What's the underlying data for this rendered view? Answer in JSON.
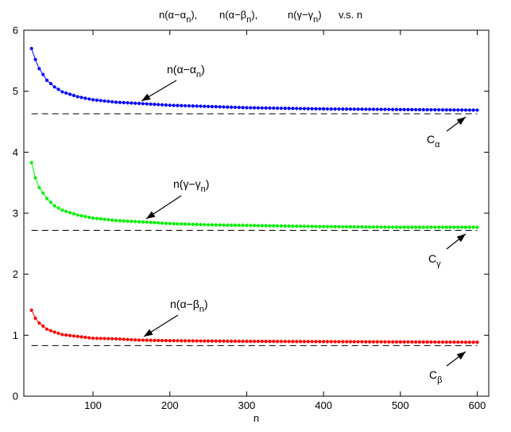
{
  "chart_data": {
    "type": "line",
    "title": {
      "parts": [
        {
          "base": "n(α−α",
          "sub": "n",
          "tail": "),"
        },
        {
          "base": "n(α−β",
          "sub": "n",
          "tail": "),"
        },
        {
          "base": "n(γ−γ",
          "sub": "n",
          "tail": ")"
        }
      ],
      "suffix": "v.s.   n"
    },
    "xlabel": "n",
    "ylabel": "",
    "xlim": [
      10,
      615
    ],
    "ylim": [
      0,
      6
    ],
    "x_ticks": [
      100,
      200,
      300,
      400,
      500,
      600
    ],
    "y_ticks": [
      0,
      1,
      2,
      3,
      4,
      5,
      6
    ],
    "grid": false,
    "x_range": [
      20,
      600
    ],
    "x_step": 5,
    "series": [
      {
        "key": "alpha",
        "color": "#0000ff",
        "points": [
          [
            20,
            5.7
          ],
          [
            25,
            5.52
          ],
          [
            30,
            5.37
          ],
          [
            40,
            5.18
          ],
          [
            50,
            5.07
          ],
          [
            60,
            4.99
          ],
          [
            80,
            4.91
          ],
          [
            100,
            4.86
          ],
          [
            130,
            4.82
          ],
          [
            160,
            4.8
          ],
          [
            200,
            4.77
          ],
          [
            250,
            4.75
          ],
          [
            300,
            4.73
          ],
          [
            400,
            4.71
          ],
          [
            500,
            4.7
          ],
          [
            600,
            4.69
          ]
        ],
        "limit": 4.63,
        "limit_label": {
          "base": "C",
          "sub": "α"
        },
        "curve_label": {
          "base": "n(α−α",
          "sub": "n",
          "tail": ")"
        }
      },
      {
        "key": "gamma",
        "color": "#00ee00",
        "points": [
          [
            20,
            3.83
          ],
          [
            25,
            3.58
          ],
          [
            30,
            3.42
          ],
          [
            40,
            3.24
          ],
          [
            50,
            3.12
          ],
          [
            60,
            3.05
          ],
          [
            80,
            2.97
          ],
          [
            100,
            2.92
          ],
          [
            130,
            2.88
          ],
          [
            160,
            2.86
          ],
          [
            200,
            2.83
          ],
          [
            250,
            2.81
          ],
          [
            300,
            2.8
          ],
          [
            400,
            2.78
          ],
          [
            500,
            2.77
          ],
          [
            600,
            2.77
          ]
        ],
        "limit": 2.72,
        "limit_label": {
          "base": "C",
          "sub": "γ"
        },
        "curve_label": {
          "base": "n(γ−γ",
          "sub": "n",
          "tail": ")"
        }
      },
      {
        "key": "beta",
        "color": "#ff0000",
        "points": [
          [
            20,
            1.41
          ],
          [
            25,
            1.28
          ],
          [
            30,
            1.2
          ],
          [
            40,
            1.1
          ],
          [
            50,
            1.05
          ],
          [
            60,
            1.01
          ],
          [
            80,
            0.98
          ],
          [
            100,
            0.95
          ],
          [
            130,
            0.94
          ],
          [
            160,
            0.92
          ],
          [
            200,
            0.91
          ],
          [
            250,
            0.905
          ],
          [
            300,
            0.9
          ],
          [
            400,
            0.895
          ],
          [
            500,
            0.89
          ],
          [
            600,
            0.885
          ]
        ],
        "limit": 0.83,
        "limit_label": {
          "base": "C",
          "sub": "β"
        },
        "curve_label": {
          "base": "n(α−β",
          "sub": "n",
          "tail": ")"
        }
      }
    ]
  }
}
